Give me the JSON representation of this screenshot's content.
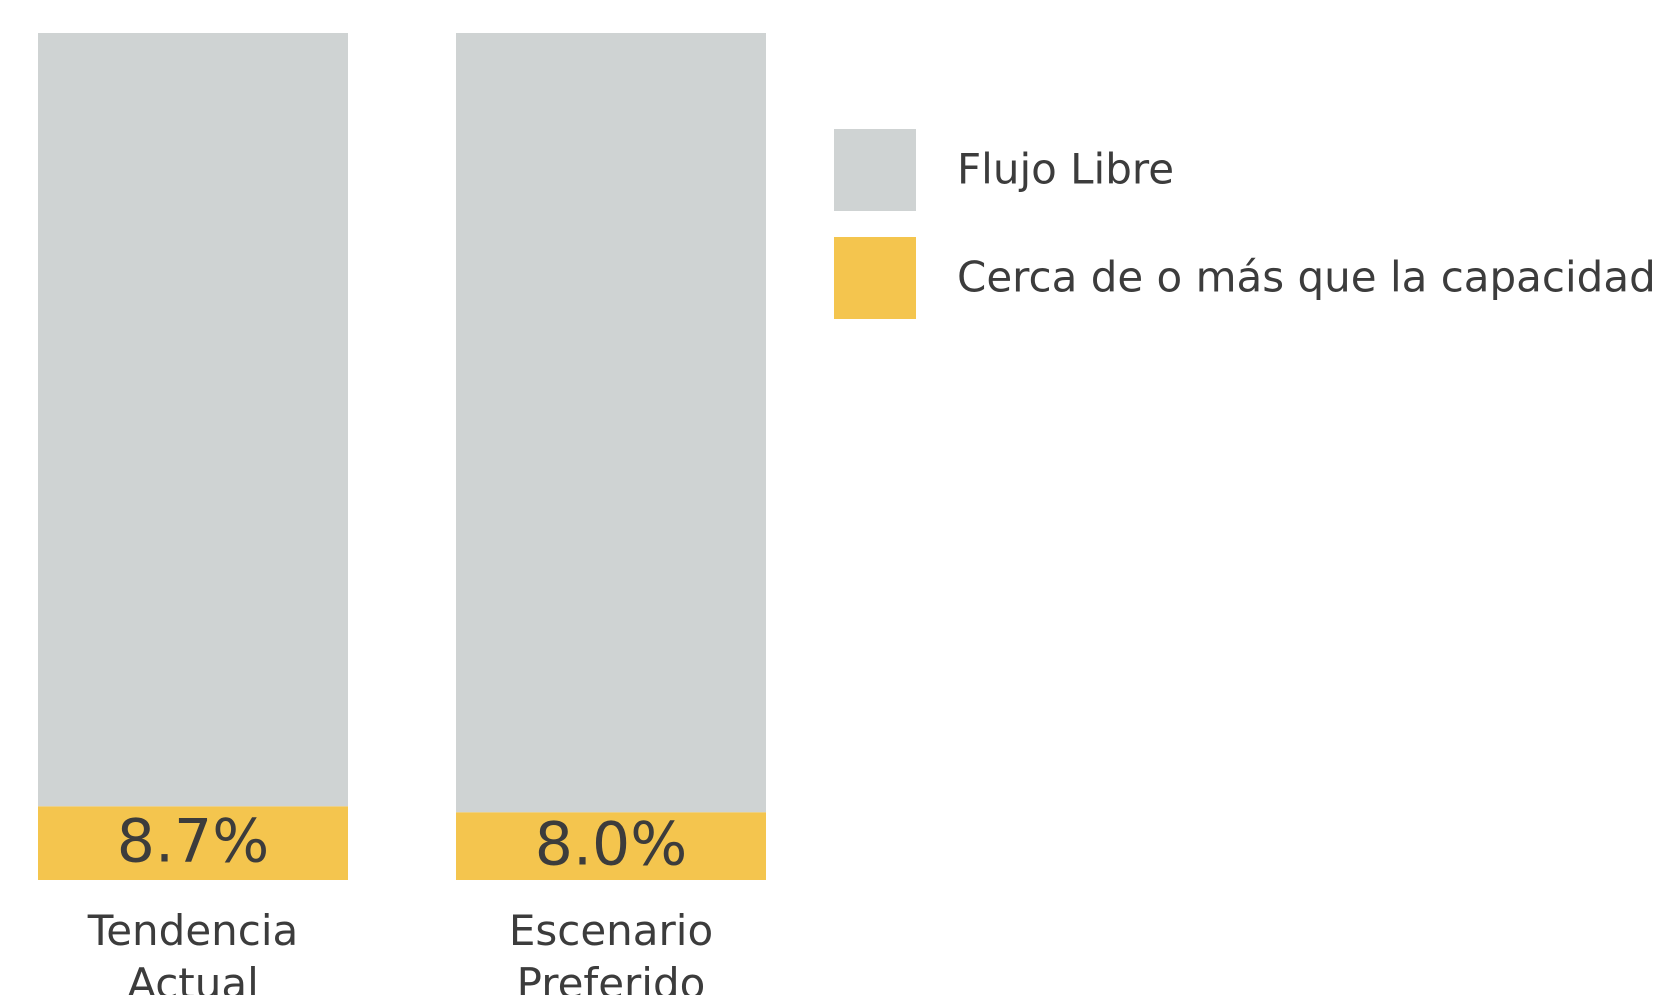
{
  "chart_data": {
    "type": "stacked_bar",
    "categories": [
      "Tendencia Actual",
      "Escenario Preferido"
    ],
    "series": [
      {
        "name": "Flujo Libre",
        "color": "#cfd3d3",
        "values": [
          91.3,
          92.0
        ]
      },
      {
        "name": "Cerca de o más que la capacidad",
        "color": "#f4c54e",
        "values": [
          8.7,
          8.0
        ],
        "value_labels": [
          "8.7%",
          "8.0%"
        ]
      }
    ],
    "ylim": [
      0,
      100
    ]
  }
}
